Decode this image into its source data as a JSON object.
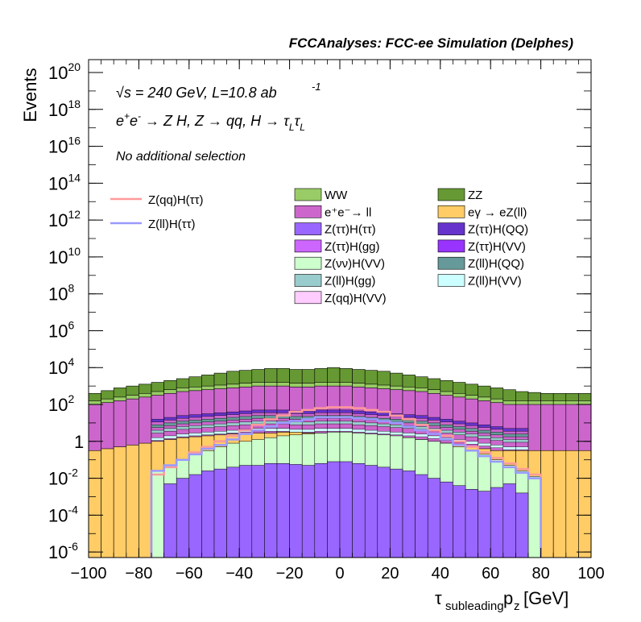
{
  "chart_data": {
    "type": "histogram-stacked",
    "title": "FCCAnalyses: FCC-ee Simulation (Delphes)",
    "xlabel": "τsubleading pz [GeV]",
    "ylabel": "Events",
    "xlim": [
      -100,
      100
    ],
    "ylim_log10": [
      -6.3,
      20.7
    ],
    "log_y": true,
    "grid": false,
    "x_ticks": [
      "−100",
      "−80",
      "−60",
      "−40",
      "−20",
      "0",
      "20",
      "40",
      "60",
      "80",
      "100"
    ],
    "y_ticks": [
      {
        "exp": -6,
        "label": "10",
        "sup": "-6"
      },
      {
        "exp": -4,
        "label": "10",
        "sup": "-4"
      },
      {
        "exp": -2,
        "label": "10",
        "sup": "-2"
      },
      {
        "exp": 0,
        "label": "1",
        "sup": ""
      },
      {
        "exp": 2,
        "label": "10",
        "sup": "2"
      },
      {
        "exp": 4,
        "label": "10",
        "sup": "4"
      },
      {
        "exp": 6,
        "label": "10",
        "sup": "6"
      },
      {
        "exp": 8,
        "label": "10",
        "sup": "8"
      },
      {
        "exp": 10,
        "label": "10",
        "sup": "10"
      },
      {
        "exp": 12,
        "label": "10",
        "sup": "12"
      },
      {
        "exp": 14,
        "label": "10",
        "sup": "14"
      },
      {
        "exp": 16,
        "label": "10",
        "sup": "16"
      },
      {
        "exp": 18,
        "label": "10",
        "sup": "18"
      },
      {
        "exp": 20,
        "label": "10",
        "sup": "20"
      }
    ],
    "annotations": {
      "energy": "√s = 240 GeV, L=10.8 ab",
      "lumi_exp": "-1",
      "process": "e⁺e⁻ → Z H, Z → qq, H → τLτL",
      "selection": "No additional selection"
    },
    "bin_width": 5,
    "bin_edges_from": -100,
    "stack_totals_log10": [
      {
        "name": "eγ → eZ(ll)",
        "values": [
          -0.5,
          -0.4,
          -0.3,
          -0.2,
          -0.1,
          0.0,
          0.1,
          0.2,
          0.25,
          0.3,
          0.35,
          0.4,
          0.4,
          0.45,
          0.45,
          0.5,
          0.5,
          0.45,
          0.45,
          0.4,
          0.4,
          0.35,
          0.35,
          0.3,
          0.25,
          0.2,
          0.1,
          0.0,
          -0.1,
          -0.2,
          -0.3,
          -0.4,
          -0.5,
          -0.5,
          -0.5,
          -0.5,
          -0.5,
          -0.5,
          -0.5,
          -0.5
        ]
      },
      {
        "name": "e⁺e⁻→ ll",
        "values": [
          2.0,
          2.1,
          2.2,
          2.3,
          2.4,
          2.5,
          2.6,
          2.7,
          2.75,
          2.8,
          2.85,
          2.9,
          2.95,
          3.0,
          3.0,
          3.0,
          2.95,
          2.95,
          3.0,
          3.0,
          3.0,
          2.95,
          2.9,
          2.85,
          2.8,
          2.75,
          2.7,
          2.6,
          2.5,
          2.4,
          2.3,
          2.2,
          2.1,
          2.0,
          2.0,
          2.0,
          2.0,
          2.0,
          2.0,
          2.0
        ]
      },
      {
        "name": "WW",
        "values": [
          2.2,
          2.3,
          2.4,
          2.5,
          2.6,
          2.7,
          2.8,
          2.9,
          2.95,
          3.0,
          3.05,
          3.1,
          3.15,
          3.2,
          3.2,
          3.2,
          3.15,
          3.15,
          3.2,
          3.2,
          3.2,
          3.15,
          3.1,
          3.05,
          3.0,
          2.95,
          2.9,
          2.8,
          2.7,
          2.6,
          2.5,
          2.4,
          2.3,
          2.2,
          2.2,
          2.2,
          2.2,
          2.2,
          2.2,
          2.2
        ]
      },
      {
        "name": "ZZ",
        "values": [
          2.6,
          2.75,
          2.9,
          3.0,
          3.1,
          3.2,
          3.3,
          3.4,
          3.5,
          3.6,
          3.7,
          3.8,
          3.85,
          3.9,
          3.95,
          3.95,
          3.9,
          3.9,
          3.95,
          4.0,
          3.95,
          3.9,
          3.85,
          3.8,
          3.7,
          3.6,
          3.5,
          3.4,
          3.3,
          3.2,
          3.1,
          3.0,
          2.9,
          2.8,
          2.7,
          2.65,
          2.6,
          2.6,
          2.6,
          2.6
        ]
      }
    ],
    "series": [
      {
        "name": "WW",
        "color": "#99cc66"
      },
      {
        "name": "ZZ",
        "color": "#669933"
      },
      {
        "name": "e⁺e⁻→ ll",
        "color": "#cc66cc"
      },
      {
        "name": "eγ → eZ(ll)",
        "color": "#ffcc66"
      },
      {
        "name": "Z(ττ)H(ττ)",
        "color": "#9966ff"
      },
      {
        "name": "Z(ττ)H(QQ)",
        "color": "#6633cc"
      },
      {
        "name": "Z(ττ)H(gg)",
        "color": "#cc66ff"
      },
      {
        "name": "Z(ττ)H(VV)",
        "color": "#9933ff"
      },
      {
        "name": "Z(νν)H(VV)",
        "color": "#ccffcc"
      },
      {
        "name": "Z(ll)H(QQ)",
        "color": "#669999"
      },
      {
        "name": "Z(ll)H(gg)",
        "color": "#99cccc"
      },
      {
        "name": "Z(ll)H(VV)",
        "color": "#ccffff"
      },
      {
        "name": "Z(qq)H(VV)",
        "color": "#ffccff"
      }
    ],
    "signal_lines": [
      {
        "name": "Z(qq)H(ττ)",
        "color": "#ff9999",
        "values_log10": [
          null,
          null,
          null,
          null,
          null,
          -1.8,
          -1.4,
          -1.0,
          -0.6,
          -0.3,
          0.0,
          0.3,
          0.6,
          0.9,
          1.2,
          1.4,
          1.6,
          1.7,
          1.8,
          1.85,
          1.85,
          1.8,
          1.7,
          1.6,
          1.4,
          1.2,
          0.9,
          0.6,
          0.3,
          0.0,
          -0.3,
          -0.6,
          -0.9,
          -1.2,
          -1.5,
          -1.8,
          null,
          null,
          null,
          null
        ]
      },
      {
        "name": "Z(ll)H(ττ)",
        "color": "#9999ff",
        "values_log10": [
          null,
          null,
          null,
          null,
          null,
          -1.6,
          -1.3,
          -1.0,
          -0.7,
          -0.4,
          -0.2,
          0.1,
          0.4,
          0.6,
          0.8,
          1.0,
          1.1,
          1.2,
          1.3,
          1.3,
          1.3,
          1.25,
          1.2,
          1.1,
          1.0,
          0.8,
          0.6,
          0.4,
          0.1,
          -0.2,
          -0.5,
          -0.8,
          -1.1,
          -1.4,
          -1.7,
          -2.0,
          null,
          null,
          null,
          null
        ]
      }
    ],
    "purple_core_log10": [
      null,
      null,
      null,
      null,
      null,
      null,
      -2.3,
      -2.0,
      -1.8,
      -1.6,
      -1.5,
      -1.4,
      -1.3,
      -1.3,
      -1.2,
      -1.2,
      -1.25,
      -1.3,
      -1.2,
      -1.1,
      -1.1,
      -1.2,
      -1.3,
      -1.4,
      -1.5,
      -1.6,
      -1.8,
      -2.0,
      -2.2,
      -2.4,
      -2.6,
      -2.7,
      -2.5,
      -2.3,
      -2.8,
      null,
      null,
      null,
      null,
      null
    ],
    "znn_band_log10": [
      null,
      null,
      null,
      null,
      null,
      -1.6,
      -1.3,
      -1.0,
      -0.7,
      -0.5,
      -0.3,
      -0.1,
      0.0,
      0.1,
      0.2,
      0.3,
      0.35,
      0.4,
      0.45,
      0.5,
      0.5,
      0.45,
      0.4,
      0.35,
      0.3,
      0.2,
      0.1,
      0.0,
      -0.1,
      -0.3,
      -0.5,
      -0.7,
      -1.0,
      -1.3,
      -1.6,
      -1.9,
      null,
      null,
      null,
      null
    ]
  }
}
